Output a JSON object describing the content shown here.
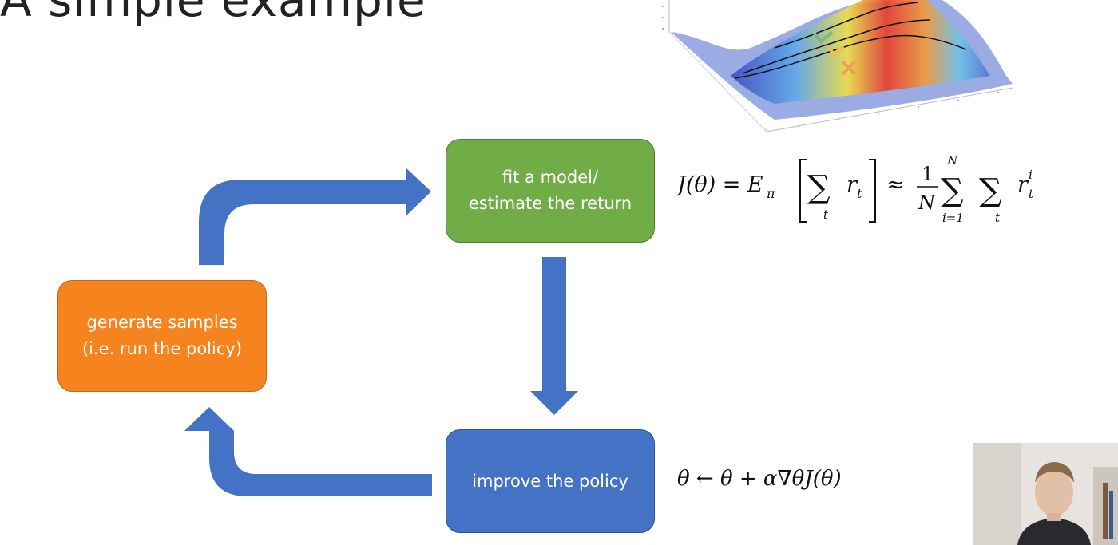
{
  "slide": {
    "title_partial": "A simple example"
  },
  "diagram": {
    "fit_box": {
      "label": "fit a model/\nestimate the return",
      "color": "#70ad47"
    },
    "generate_box": {
      "label": "generate samples\n(i.e. run the policy)",
      "color": "#f5841f"
    },
    "improve_box": {
      "label": "improve the policy",
      "color": "#4472c4"
    },
    "arrow_color": "#4472c4"
  },
  "equations": {
    "return": {
      "lhs": "J(θ) = E",
      "lhs_sub": "π",
      "sum_index": "t",
      "term": "r",
      "term_sub": "t",
      "approx": "≈",
      "frac_num": "1",
      "frac_den": "N",
      "outer_sum_top": "N",
      "outer_sum_bottom": "i=1",
      "inner_sum_bottom": "t",
      "term2": "r",
      "term2_sup": "i",
      "term2_sub": "t"
    },
    "update": {
      "text": "θ ← θ + α∇θJ(θ)"
    }
  },
  "figure": {
    "description_icon": "reward-surface-plot-icon"
  },
  "webcam": {
    "icon": "presenter-webcam-icon"
  }
}
